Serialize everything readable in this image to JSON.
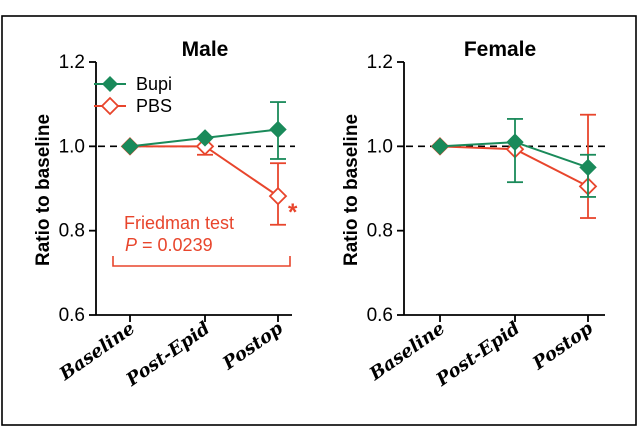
{
  "colors": {
    "bupi": "#1a8a5a",
    "pbs": "#e8452c",
    "ink": "#000000"
  },
  "chart_data": [
    {
      "type": "line",
      "title": "Male",
      "ylabel": "Ratio to baseline",
      "categories": [
        "Baseline",
        "Post-Epid",
        "Postop"
      ],
      "yticks": [
        "0.6",
        "0.8",
        "1.0",
        "1.2"
      ],
      "ylim": [
        0.6,
        1.2
      ],
      "reference_line": 1.0,
      "series": [
        {
          "name": "Bupi",
          "marker": "filled-diamond",
          "values": [
            1.0,
            1.02,
            1.04
          ],
          "err_low": [
            0,
            0,
            0.07
          ],
          "err_high": [
            0,
            0,
            0.065
          ]
        },
        {
          "name": "PBS",
          "marker": "open-diamond",
          "values": [
            1.0,
            1.0,
            0.882
          ],
          "err_low": [
            0,
            0.02,
            0.068
          ],
          "err_high": [
            0,
            0,
            0.078
          ]
        }
      ],
      "legend": {
        "placement": "top-left"
      },
      "annotation": {
        "test": "Friedman test",
        "p_symbol": "P",
        "p_value": " = 0.0239",
        "star": "*"
      }
    },
    {
      "type": "line",
      "title": "Female",
      "ylabel": "Ratio to baseline",
      "categories": [
        "Baseline",
        "Post-Epid",
        "Postop"
      ],
      "yticks": [
        "0.6",
        "0.8",
        "1.0",
        "1.2"
      ],
      "ylim": [
        0.6,
        1.2
      ],
      "reference_line": 1.0,
      "series": [
        {
          "name": "Bupi",
          "marker": "filled-diamond",
          "values": [
            1.0,
            1.01,
            0.95
          ],
          "err_low": [
            0,
            0.095,
            0.07
          ],
          "err_high": [
            0,
            0.055,
            0.03
          ]
        },
        {
          "name": "PBS",
          "marker": "open-diamond",
          "values": [
            1.0,
            0.993,
            0.905
          ],
          "err_low": [
            0,
            0,
            0.075
          ],
          "err_high": [
            0,
            0,
            0.17
          ]
        }
      ]
    }
  ]
}
